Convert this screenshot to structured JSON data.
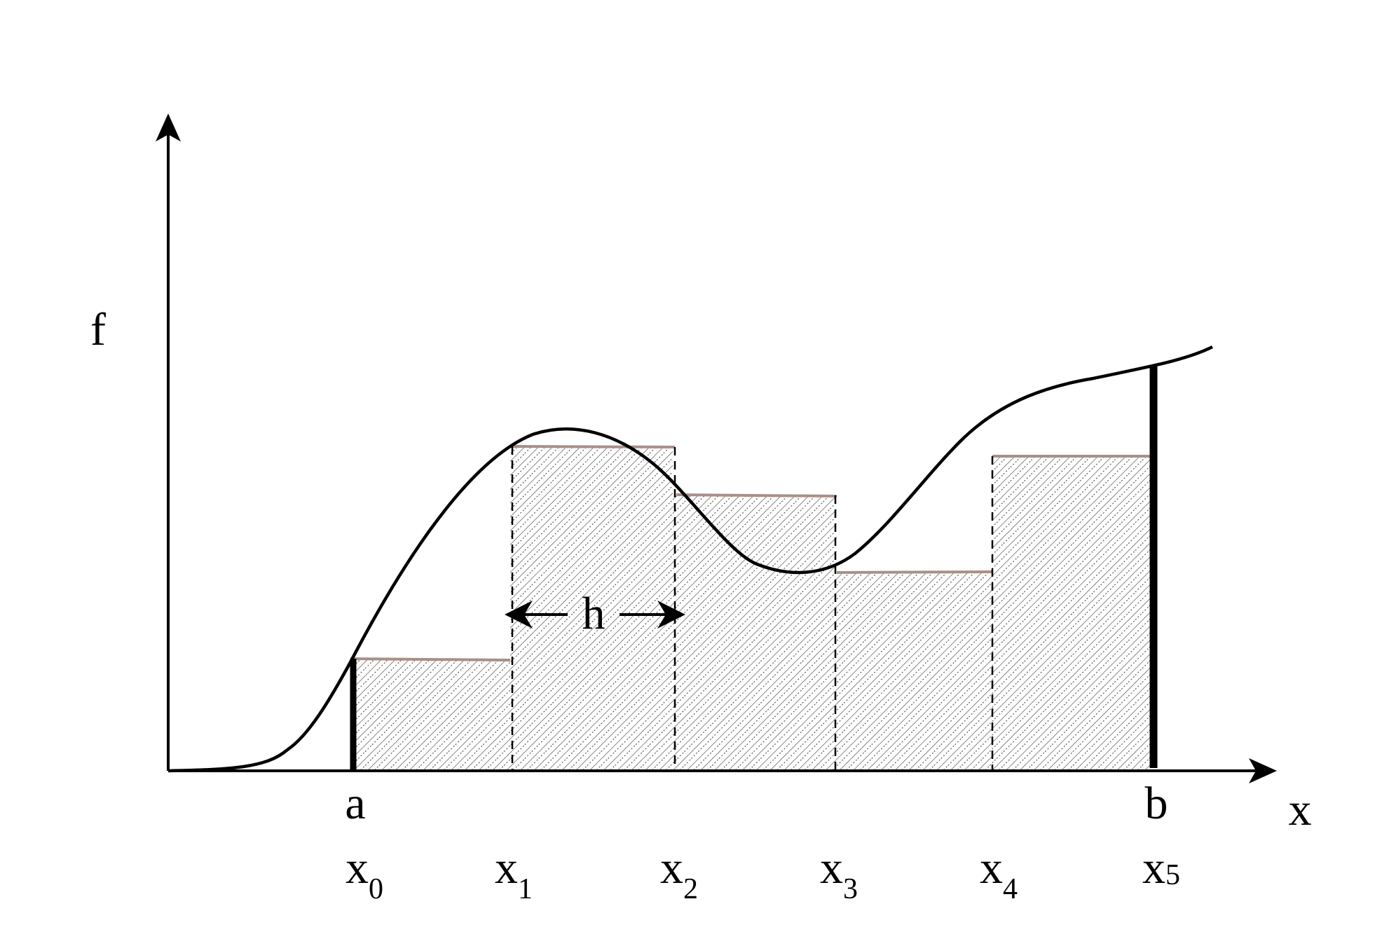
{
  "axes": {
    "y_label": "f",
    "x_label": "x"
  },
  "interval": {
    "start_label": "a",
    "end_label": "b"
  },
  "step": {
    "label": "h"
  },
  "nodes": [
    {
      "base": "x",
      "index": "0"
    },
    {
      "base": "x",
      "index": "1"
    },
    {
      "base": "x",
      "index": "2"
    },
    {
      "base": "x",
      "index": "3"
    },
    {
      "base": "x",
      "index": "4"
    },
    {
      "base": "x",
      "index": "5"
    }
  ],
  "colors": {
    "ink": "#000000",
    "rectangle_top": "#a89088",
    "hatch": "#555555"
  }
}
